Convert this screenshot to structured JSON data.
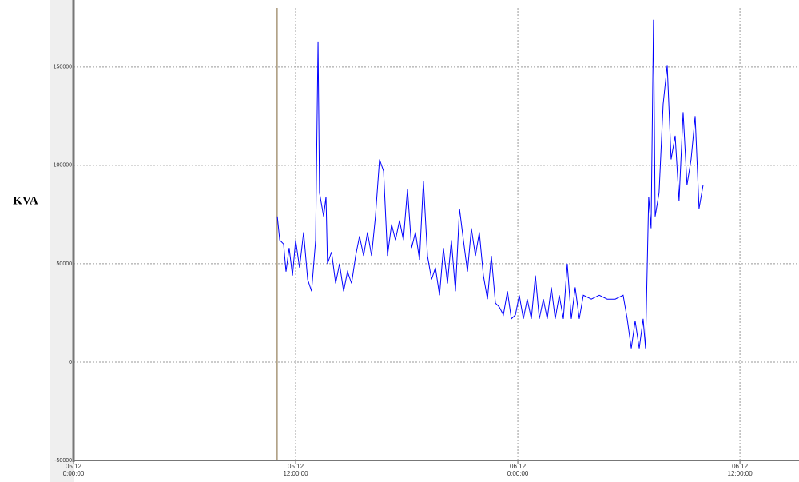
{
  "chart_data": {
    "type": "line",
    "y_label": "KVA",
    "x": [
      11.01,
      11.14,
      11.35,
      11.48,
      11.65,
      11.83,
      12.0,
      12.21,
      12.43,
      12.65,
      12.86,
      13.08,
      13.21,
      13.29,
      13.51,
      13.64,
      13.72,
      13.94,
      14.16,
      14.37,
      14.59,
      14.8,
      15.02,
      15.24,
      15.45,
      15.67,
      15.88,
      16.1,
      16.31,
      16.53,
      16.75,
      16.96,
      17.18,
      17.39,
      17.61,
      17.82,
      18.04,
      18.26,
      18.47,
      18.69,
      18.9,
      19.12,
      19.34,
      19.55,
      19.77,
      19.98,
      20.2,
      20.41,
      20.63,
      20.85,
      21.06,
      21.28,
      21.49,
      21.71,
      21.92,
      22.14,
      22.36,
      22.57,
      22.79,
      23.0,
      23.22,
      23.44,
      23.65,
      23.87,
      24.08,
      24.3,
      24.51,
      24.73,
      24.95,
      25.16,
      25.38,
      25.59,
      25.81,
      26.02,
      26.24,
      26.46,
      26.67,
      26.89,
      27.1,
      27.32,
      27.54,
      27.97,
      28.4,
      28.83,
      29.26,
      29.69,
      29.91,
      30.13,
      30.34,
      30.56,
      30.77,
      30.9,
      31.07,
      31.2,
      31.33,
      31.42,
      31.63,
      31.85,
      32.07,
      32.28,
      32.5,
      32.71,
      32.93,
      33.14,
      33.36,
      33.58,
      33.79,
      34.01
    ],
    "series": [
      {
        "color": "#0000ff",
        "values": [
          74000,
          62000,
          60000,
          46000,
          58000,
          44000,
          62000,
          48000,
          66000,
          42000,
          36000,
          62000,
          163000,
          86000,
          74000,
          84000,
          50000,
          56000,
          40000,
          50000,
          36000,
          46000,
          40000,
          54000,
          64000,
          54000,
          66000,
          54000,
          74000,
          103000,
          97000,
          54000,
          70000,
          62000,
          72000,
          62000,
          88000,
          58000,
          66000,
          52000,
          92000,
          54000,
          42000,
          48000,
          34000,
          58000,
          40000,
          62000,
          36000,
          78000,
          62000,
          46000,
          68000,
          54000,
          66000,
          44000,
          32000,
          54000,
          30000,
          28000,
          24000,
          36000,
          22000,
          24000,
          34000,
          22000,
          32000,
          22000,
          44000,
          22000,
          32000,
          22000,
          38000,
          22000,
          34000,
          22000,
          50000,
          22000,
          38000,
          22000,
          34000,
          32000,
          34000,
          32000,
          32000,
          34000,
          22000,
          7000,
          21000,
          7000,
          22000,
          7000,
          84000,
          68000,
          174000,
          74000,
          86000,
          131000,
          151000,
          103000,
          115000,
          82000,
          127000,
          90000,
          103000,
          125000,
          78000,
          90000
        ]
      }
    ],
    "cursor_x": 11.0,
    "xlim": [
      0,
      39.19
    ],
    "xticks": [
      {
        "value": 0,
        "label": "05.12\n0:00:00"
      },
      {
        "value": 12,
        "label": "05.12\n12:00:00"
      },
      {
        "value": 24,
        "label": "06.12\n0:00:00"
      },
      {
        "value": 36,
        "label": "06.12\n12:00:00"
      }
    ],
    "ylim": [
      -50000,
      180000
    ],
    "yticks": [
      -50000,
      0,
      50000,
      100000,
      150000
    ],
    "grid": true
  }
}
